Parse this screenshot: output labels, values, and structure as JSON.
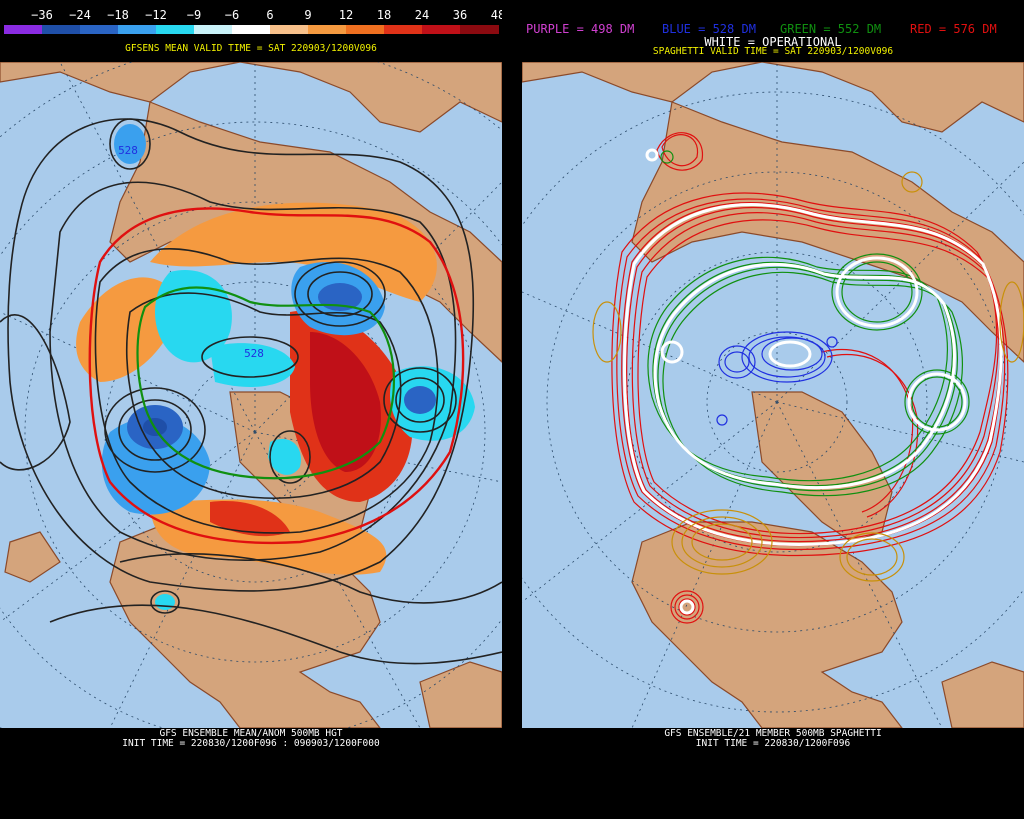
{
  "colorbar": {
    "labels": [
      "−36",
      "−24",
      "−18",
      "−12",
      "−9",
      "−6",
      "6",
      "9",
      "12",
      "18",
      "24",
      "36",
      "48"
    ],
    "colors": [
      "#8a2be2",
      "#1f4fa8",
      "#2a64c4",
      "#3aa0ee",
      "#28d8f0",
      "#c9f2f9",
      "#ffffff",
      "#f7c08a",
      "#f59a40",
      "#f07020",
      "#e03218",
      "#c01018",
      "#8b0a10"
    ]
  },
  "left_panel": {
    "valid_title": "GFSENS MEAN VALID TIME = SAT 220903/1200V096",
    "footer_line1": "GFS ENSEMBLE MEAN/ANOM 500MB HGT",
    "footer_line2": "INIT TIME = 220830/1200F096 : 090903/1200F000",
    "contour_labels": [
      "528",
      "528"
    ]
  },
  "right_panel": {
    "legend": [
      {
        "text": "PURPLE = 498 DM",
        "color": "#d040d0"
      },
      {
        "text": "BLUE = 528 DM",
        "color": "#2030e0"
      },
      {
        "text": "GREEN = 552 DM",
        "color": "#109010"
      },
      {
        "text": "RED = 576 DM",
        "color": "#e01010"
      }
    ],
    "operational": "WHITE = OPERATIONAL",
    "valid_title": "SPAGHETTI VALID TIME = SAT 220903/1200V096",
    "footer_line1": "GFS ENSEMBLE/21 MEMBER 500MB SPAGHETTI",
    "footer_line2": "INIT TIME = 220830/1200F096"
  }
}
